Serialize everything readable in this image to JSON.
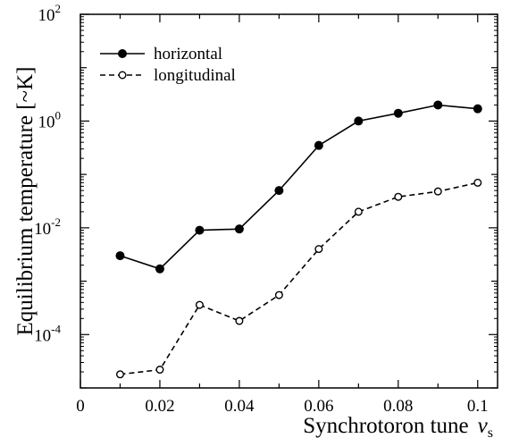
{
  "chart_data": {
    "type": "line",
    "xlabel": "Synchrotoron tune",
    "xlabel_symbol": "ν",
    "xlabel_subscript": "s",
    "ylabel": "Equilibrium temperature [~K]",
    "x_scale": "linear",
    "y_scale": "log",
    "xlim": [
      0,
      0.105
    ],
    "ylim": [
      1e-05,
      100.0
    ],
    "x_ticks": [
      {
        "value": 0,
        "label": "0"
      },
      {
        "value": 0.02,
        "label": "0.02"
      },
      {
        "value": 0.04,
        "label": "0.04"
      },
      {
        "value": 0.06,
        "label": "0.06"
      },
      {
        "value": 0.08,
        "label": "0.08"
      },
      {
        "value": 0.1,
        "label": "0.1"
      }
    ],
    "y_ticks": [
      {
        "value": 0.0001,
        "base": "10",
        "exp": "-4"
      },
      {
        "value": 0.01,
        "base": "10",
        "exp": "-2"
      },
      {
        "value": 1,
        "base": "10",
        "exp": "0"
      },
      {
        "value": 100,
        "base": "10",
        "exp": "2"
      }
    ],
    "grid": false,
    "legend_position": "top-left",
    "x": [
      0.01,
      0.02,
      0.03,
      0.04,
      0.05,
      0.06,
      0.07,
      0.08,
      0.09,
      0.1
    ],
    "series": [
      {
        "name": "horizontal",
        "style": "solid",
        "marker": "filled-circle",
        "color": "#000000",
        "values": [
          0.003,
          0.0017,
          0.009,
          0.0095,
          0.05,
          0.35,
          1.0,
          1.4,
          2.0,
          1.7
        ]
      },
      {
        "name": "longitudinal",
        "style": "dashed",
        "marker": "open-circle",
        "color": "#000000",
        "values": [
          1.8e-05,
          2.2e-05,
          0.00036,
          0.00018,
          0.00055,
          0.004,
          0.02,
          0.038,
          0.048,
          0.07
        ]
      }
    ]
  }
}
